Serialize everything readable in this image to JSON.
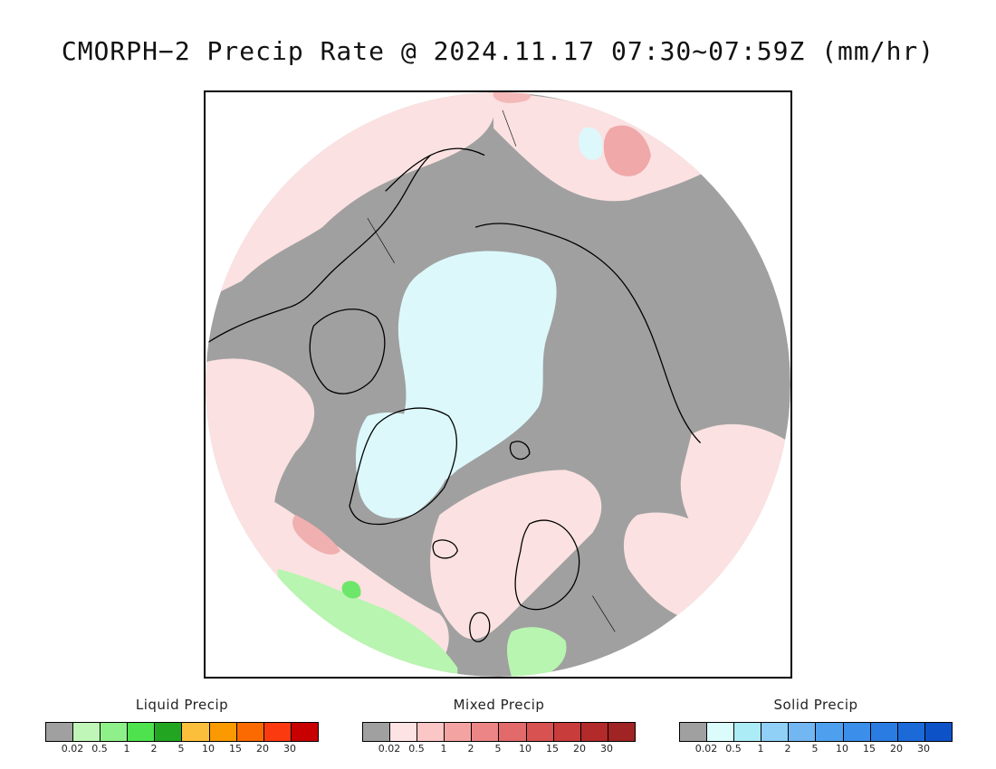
{
  "title": "CMORPH−2 Precip Rate @ 2024.11.17 07:30~07:59Z (mm/hr)",
  "map": {
    "projection": "north polar stereographic",
    "colors": {
      "no_precip": "#a0a0a0",
      "mixed_light": "#fbe1e1",
      "solid_light": "#dcf8fb",
      "liquid_light": "#b8f5b0",
      "coastline": "#000000",
      "frame_bg": "#ffffff"
    }
  },
  "legends": [
    {
      "title": "Liquid Precip",
      "colors": [
        "#a0a0a0",
        "#c0f7b8",
        "#8ff08a",
        "#4fe24f",
        "#22a622",
        "#fbbf3b",
        "#fb9a00",
        "#fb6a00",
        "#fb3a10",
        "#c80000"
      ],
      "ticks": [
        "0.02",
        "0.5",
        "1",
        "2",
        "5",
        "10",
        "15",
        "20",
        "30"
      ]
    },
    {
      "title": "Mixed Precip",
      "colors": [
        "#a0a0a0",
        "#fde3e3",
        "#fbc6c6",
        "#f4a3a3",
        "#ec8585",
        "#e26a6a",
        "#d85252",
        "#c83c3c",
        "#b22a2a",
        "#a02424"
      ],
      "ticks": [
        "0.02",
        "0.5",
        "1",
        "2",
        "5",
        "10",
        "15",
        "20",
        "30"
      ]
    },
    {
      "title": "Solid Precip",
      "colors": [
        "#a0a0a0",
        "#dcfcfc",
        "#acecf6",
        "#90cff6",
        "#72b6f2",
        "#4ea0ee",
        "#3b8eea",
        "#2a7ce2",
        "#1c6ad8",
        "#0e52c8"
      ],
      "ticks": [
        "0.02",
        "0.5",
        "1",
        "2",
        "5",
        "10",
        "15",
        "20",
        "30"
      ]
    }
  ]
}
